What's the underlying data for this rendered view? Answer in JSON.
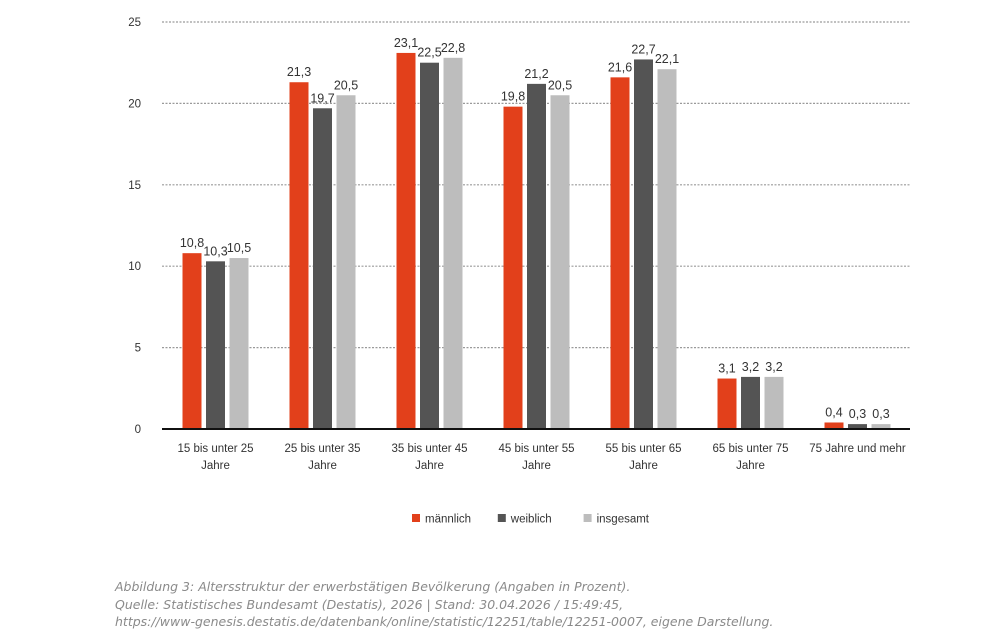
{
  "chart_data": {
    "type": "bar",
    "categories": [
      [
        "15 bis unter 25",
        "Jahre"
      ],
      [
        "25 bis unter 35",
        "Jahre"
      ],
      [
        "35 bis unter 45",
        "Jahre"
      ],
      [
        "45 bis unter 55",
        "Jahre"
      ],
      [
        "55 bis unter 65",
        "Jahre"
      ],
      [
        "65 bis unter 75",
        "Jahre"
      ],
      [
        "75 Jahre und mehr"
      ]
    ],
    "series": [
      {
        "name": "männlich",
        "color": "#e2401b",
        "values": [
          10.8,
          21.3,
          23.1,
          19.8,
          21.6,
          3.1,
          0.4
        ],
        "labels": [
          "10,8",
          "21,3",
          "23,1",
          "19,8",
          "21,6",
          "3,1",
          "0,4"
        ]
      },
      {
        "name": "weiblich",
        "color": "#545454",
        "values": [
          10.3,
          19.7,
          22.5,
          21.2,
          22.7,
          3.2,
          0.3
        ],
        "labels": [
          "10,3",
          "19,7",
          "22,5",
          "21,2",
          "22,7",
          "3,2",
          "0,3"
        ]
      },
      {
        "name": "insgesamt",
        "color": "#bdbdbd",
        "values": [
          10.5,
          20.5,
          22.8,
          20.5,
          22.1,
          3.2,
          0.3
        ],
        "labels": [
          "10,5",
          "20,5",
          "22,8",
          "20,5",
          "22,1",
          "3,2",
          "0,3"
        ]
      }
    ],
    "yticks": [
      0,
      5,
      10,
      15,
      20,
      25
    ],
    "ylim": [
      0,
      25
    ],
    "grid": true,
    "legend_position": "bottom-center"
  },
  "caption": {
    "line1": "Abbildung 3: Altersstruktur der erwerbstätigen Bevölkerung (Angaben in Prozent).",
    "line2": "Quelle: Statistisches Bundesamt (Destatis), 2026 | Stand: 30.04.2026 / 15:49:45,",
    "line3": "https://www-genesis.destatis.de/datenbank/online/statistic/12251/table/12251-0007, eigene Darstellung."
  }
}
